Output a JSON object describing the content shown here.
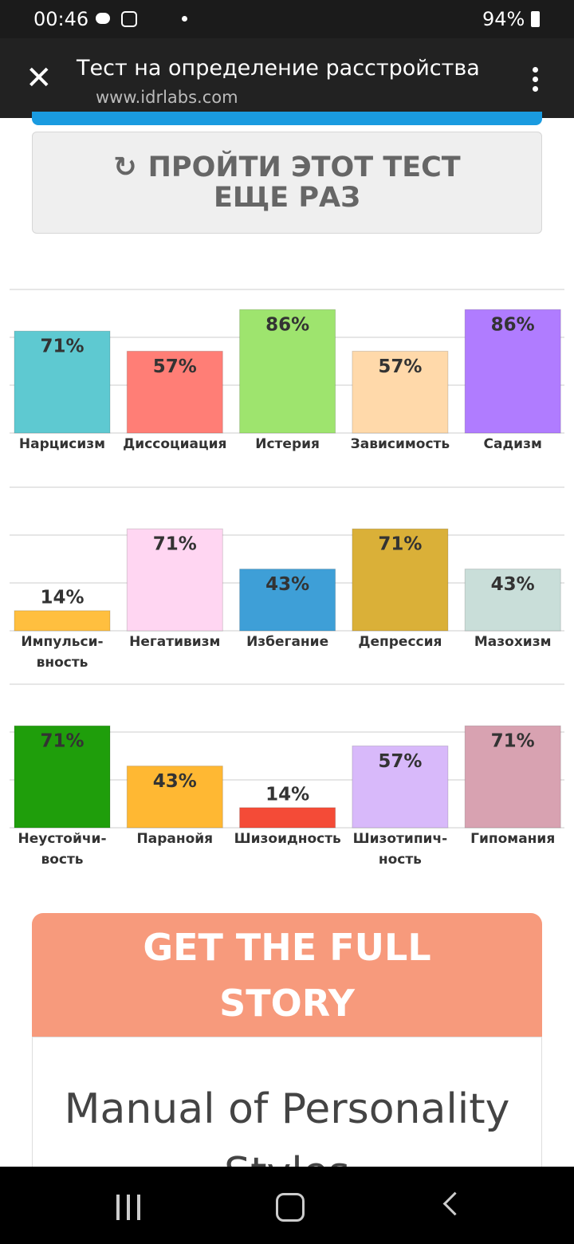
{
  "status_bar": {
    "time": "00:46",
    "battery": "94%"
  },
  "browser": {
    "title": "Тест на определение расстройства",
    "url": "www.idrlabs.com"
  },
  "retake_button": "ПРОЙТИ ЭТОТ ТЕСТ ЕЩЕ РАЗ",
  "chart_data": [
    {
      "type": "bar",
      "categories": [
        "Нарцисизм",
        "Диссоциация",
        "Истерия",
        "Зависимость",
        "Садизм"
      ],
      "values": [
        71,
        57,
        86,
        57,
        86
      ],
      "value_labels": [
        "71%",
        "57%",
        "86%",
        "57%",
        "86%"
      ],
      "colors": [
        "#5ec9d1",
        "#ff7e76",
        "#9ee46e",
        "#ffd9aa",
        "#b07cff"
      ],
      "ylim": [
        0,
        100
      ],
      "yticks": [
        0,
        33.3,
        66.7,
        100
      ],
      "grid": true
    },
    {
      "type": "bar",
      "categories": [
        "Импульси-вность",
        "Негативизм",
        "Избегание",
        "Депрессия",
        "Мазохизм"
      ],
      "values": [
        14,
        71,
        43,
        71,
        43
      ],
      "value_labels": [
        "14%",
        "71%",
        "43%",
        "71%",
        "43%"
      ],
      "colors": [
        "#ffbf3f",
        "#ffd6f2",
        "#3e9fd7",
        "#dab038",
        "#c9ded9"
      ],
      "ylim": [
        0,
        100
      ],
      "yticks": [
        0,
        33.3,
        66.7,
        100
      ],
      "grid": true
    },
    {
      "type": "bar",
      "categories": [
        "Неустойчи-вость",
        "Паранойя",
        "Шизоидность",
        "Шизотипич-ность",
        "Гипомания"
      ],
      "values": [
        71,
        43,
        14,
        57,
        71
      ],
      "value_labels": [
        "71%",
        "43%",
        "14%",
        "57%",
        "71%"
      ],
      "colors": [
        "#1f9e0b",
        "#ffb833",
        "#f44b37",
        "#d8b9fa",
        "#d8a2b1"
      ],
      "ylim": [
        0,
        100
      ],
      "yticks": [
        0,
        33.3,
        66.7,
        100
      ],
      "grid": true
    }
  ],
  "promo": {
    "heading": "GET THE FULL STORY",
    "book": "Manual of Personality Styles"
  }
}
